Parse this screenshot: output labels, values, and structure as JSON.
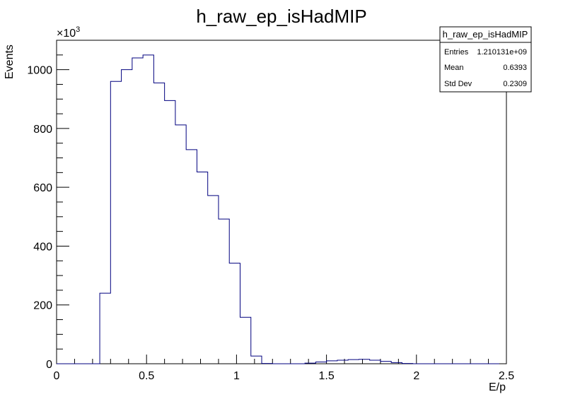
{
  "chart_data": {
    "type": "bar",
    "title": "h_raw_ep_isHadMIP",
    "xlabel": "E/p",
    "ylabel": "Events",
    "y_multiplier": "×10",
    "y_multiplier_exponent": "3",
    "xlim": [
      0,
      2.5
    ],
    "ylim": [
      0,
      1100
    ],
    "x_ticks": [
      "0",
      "0.5",
      "1",
      "1.5",
      "2",
      "2.5"
    ],
    "x_tick_values": [
      0,
      0.5,
      1,
      1.5,
      2,
      2.5
    ],
    "y_ticks": [
      "0",
      "200",
      "400",
      "600",
      "800",
      "1000"
    ],
    "y_tick_values": [
      0,
      200,
      400,
      600,
      800,
      1000
    ],
    "bin_width": 0.06,
    "bins_x_start": [
      0.0,
      0.06,
      0.12,
      0.18,
      0.24,
      0.3,
      0.36,
      0.42,
      0.48,
      0.54,
      0.6,
      0.66,
      0.72,
      0.78,
      0.84,
      0.9,
      0.96,
      1.02,
      1.08,
      1.14,
      1.2,
      1.26,
      1.32,
      1.38,
      1.44,
      1.5,
      1.56,
      1.62,
      1.68,
      1.74,
      1.8,
      1.86,
      1.92,
      1.98,
      2.04,
      2.1,
      2.16,
      2.22,
      2.28,
      2.34,
      2.4
    ],
    "values": [
      0,
      0,
      0,
      0,
      240,
      960,
      1000,
      1040,
      1050,
      955,
      895,
      812,
      728,
      652,
      572,
      492,
      342,
      158,
      26,
      1,
      0,
      0,
      0,
      2,
      6,
      10,
      12,
      14,
      15,
      12,
      8,
      4,
      1,
      0,
      0,
      0,
      0,
      0,
      0,
      0,
      0
    ],
    "line_color": "#00007f",
    "stats_box": {
      "title": "h_raw_ep_isHadMIP",
      "rows": [
        {
          "label": "Entries",
          "value": "1.210131e+09"
        },
        {
          "label": "Mean",
          "value": "0.6393"
        },
        {
          "label": "Std Dev",
          "value": "0.2309"
        }
      ]
    }
  }
}
